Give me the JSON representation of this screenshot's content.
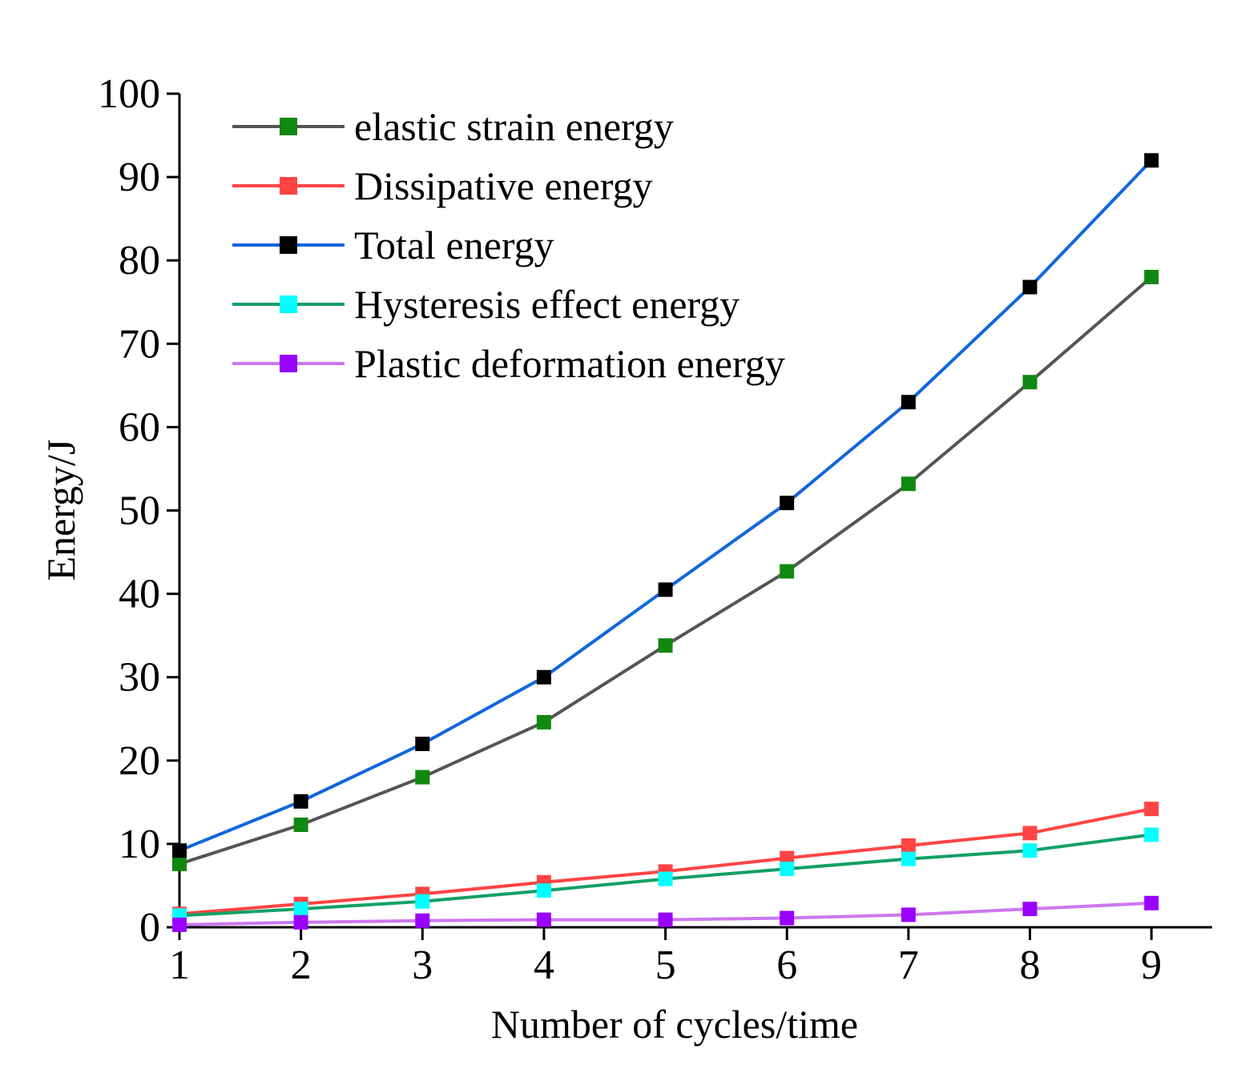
{
  "chart_data": {
    "type": "line",
    "title": "",
    "xlabel": "Number of cycles/time",
    "ylabel": "Energy/J",
    "x": [
      1,
      2,
      3,
      4,
      5,
      6,
      7,
      8,
      9
    ],
    "xlim": [
      1,
      9.5
    ],
    "ylim": [
      0,
      100
    ],
    "xticks": [
      "1",
      "2",
      "3",
      "4",
      "5",
      "6",
      "7",
      "8",
      "9"
    ],
    "yticks": [
      "0",
      "10",
      "20",
      "30",
      "40",
      "50",
      "60",
      "70",
      "80",
      "90",
      "100"
    ],
    "grid": false,
    "legend_position": "top-left",
    "series": [
      {
        "name": "elastic strain energy",
        "line_color": "#555555",
        "marker_color": "#118811",
        "values": [
          7.6,
          12.3,
          18.0,
          24.6,
          33.8,
          42.7,
          53.2,
          65.4,
          78.0
        ]
      },
      {
        "name": "Dissipative energy",
        "line_color": "#ff4444",
        "marker_color": "#ff4444",
        "values": [
          1.6,
          2.8,
          4.0,
          5.4,
          6.7,
          8.3,
          9.8,
          11.3,
          14.2
        ]
      },
      {
        "name": "Total energy",
        "line_color": "#1166dd",
        "marker_color": "#000000",
        "values": [
          9.2,
          15.1,
          22.0,
          30.0,
          40.5,
          50.9,
          63.0,
          76.8,
          92.0
        ]
      },
      {
        "name": "Hysteresis effect energy",
        "line_color": "#11a066",
        "marker_color": "#00ffff",
        "values": [
          1.4,
          2.2,
          3.1,
          4.4,
          5.8,
          7.0,
          8.2,
          9.2,
          11.1
        ]
      },
      {
        "name": "Plastic deformation energy",
        "line_color": "#cc77ee",
        "marker_color": "#9900ff",
        "values": [
          0.3,
          0.6,
          0.8,
          0.9,
          0.9,
          1.1,
          1.5,
          2.2,
          2.9
        ]
      }
    ]
  }
}
